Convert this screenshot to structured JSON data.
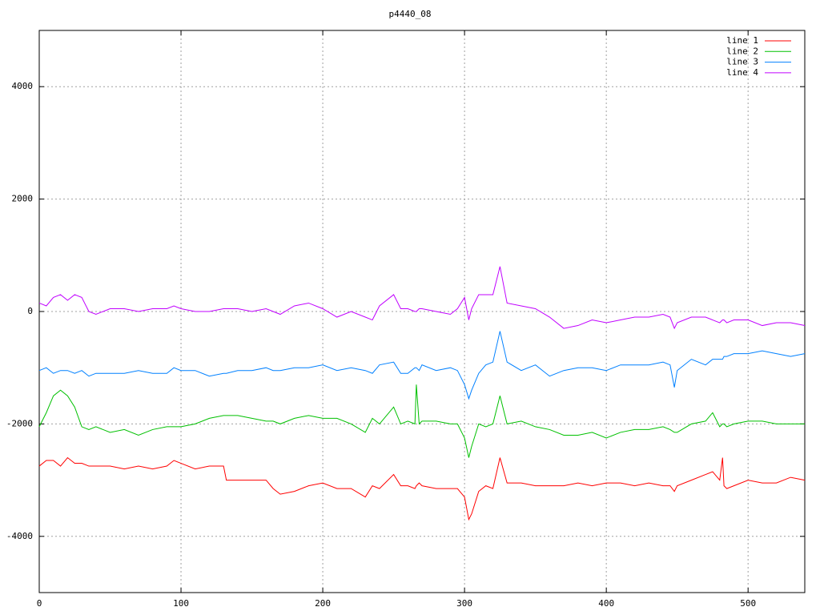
{
  "chart_data": {
    "type": "line",
    "title": "p4440_08",
    "x": [
      0,
      5,
      10,
      15,
      20,
      25,
      30,
      35,
      40,
      50,
      60,
      70,
      80,
      90,
      95,
      100,
      110,
      120,
      130,
      132,
      140,
      150,
      160,
      165,
      170,
      180,
      190,
      200,
      210,
      220,
      230,
      235,
      240,
      250,
      255,
      260,
      265,
      266,
      268,
      270,
      280,
      290,
      295,
      300,
      303,
      305,
      310,
      315,
      320,
      325,
      330,
      340,
      350,
      360,
      370,
      380,
      390,
      400,
      410,
      420,
      430,
      440,
      445,
      448,
      450,
      460,
      470,
      475,
      480,
      482,
      483,
      485,
      490,
      500,
      510,
      520,
      530,
      540
    ],
    "series": [
      {
        "name": "line 1",
        "color": "#ff0000",
        "values": [
          -2750,
          -2650,
          -2650,
          -2750,
          -2600,
          -2700,
          -2700,
          -2750,
          -2750,
          -2750,
          -2800,
          -2750,
          -2800,
          -2750,
          -2650,
          -2700,
          -2800,
          -2750,
          -2750,
          -3000,
          -3000,
          -3000,
          -3000,
          -3150,
          -3250,
          -3200,
          -3100,
          -3050,
          -3150,
          -3150,
          -3300,
          -3100,
          -3150,
          -2900,
          -3100,
          -3100,
          -3150,
          -3100,
          -3050,
          -3100,
          -3150,
          -3150,
          -3150,
          -3300,
          -3700,
          -3600,
          -3200,
          -3100,
          -3150,
          -2600,
          -3050,
          -3050,
          -3100,
          -3100,
          -3100,
          -3050,
          -3100,
          -3050,
          -3050,
          -3100,
          -3050,
          -3100,
          -3100,
          -3200,
          -3100,
          -3000,
          -2900,
          -2850,
          -3000,
          -2600,
          -3100,
          -3150,
          -3100,
          -3000,
          -3050,
          -3050,
          -2950,
          -3000
        ]
      },
      {
        "name": "line 2",
        "color": "#00c000",
        "values": [
          -2050,
          -1800,
          -1500,
          -1400,
          -1500,
          -1700,
          -2050,
          -2100,
          -2050,
          -2150,
          -2100,
          -2200,
          -2100,
          -2050,
          -2050,
          -2050,
          -2000,
          -1900,
          -1850,
          -1850,
          -1850,
          -1900,
          -1950,
          -1950,
          -2000,
          -1900,
          -1850,
          -1900,
          -1900,
          -2000,
          -2150,
          -1900,
          -2000,
          -1700,
          -2000,
          -1950,
          -2000,
          -1300,
          -2000,
          -1950,
          -1950,
          -2000,
          -2000,
          -2250,
          -2600,
          -2400,
          -2000,
          -2050,
          -2000,
          -1500,
          -2000,
          -1950,
          -2050,
          -2100,
          -2200,
          -2200,
          -2150,
          -2250,
          -2150,
          -2100,
          -2100,
          -2050,
          -2100,
          -2150,
          -2150,
          -2000,
          -1950,
          -1800,
          -2050,
          -2000,
          -2000,
          -2050,
          -2000,
          -1950,
          -1950,
          -2000,
          -2000,
          -2000
        ]
      },
      {
        "name": "line 3",
        "color": "#0080ff",
        "values": [
          -1050,
          -1000,
          -1100,
          -1050,
          -1050,
          -1100,
          -1050,
          -1150,
          -1100,
          -1100,
          -1100,
          -1050,
          -1100,
          -1100,
          -1000,
          -1050,
          -1050,
          -1150,
          -1100,
          -1100,
          -1050,
          -1050,
          -1000,
          -1050,
          -1050,
          -1000,
          -1000,
          -950,
          -1050,
          -1000,
          -1050,
          -1100,
          -950,
          -900,
          -1100,
          -1100,
          -1000,
          -1000,
          -1050,
          -950,
          -1050,
          -1000,
          -1050,
          -1300,
          -1550,
          -1400,
          -1100,
          -950,
          -900,
          -350,
          -900,
          -1050,
          -950,
          -1150,
          -1050,
          -1000,
          -1000,
          -1050,
          -950,
          -950,
          -950,
          -900,
          -950,
          -1350,
          -1050,
          -850,
          -950,
          -850,
          -850,
          -850,
          -800,
          -800,
          -750,
          -750,
          -700,
          -750,
          -800,
          -750
        ]
      },
      {
        "name": "line 4",
        "color": "#c000ff",
        "values": [
          150,
          100,
          250,
          300,
          200,
          300,
          250,
          0,
          -50,
          50,
          50,
          0,
          50,
          50,
          100,
          50,
          0,
          0,
          50,
          50,
          50,
          0,
          50,
          0,
          -50,
          100,
          150,
          50,
          -100,
          0,
          -100,
          -150,
          100,
          300,
          50,
          50,
          0,
          0,
          50,
          50,
          0,
          -50,
          50,
          250,
          -150,
          50,
          300,
          300,
          300,
          800,
          150,
          100,
          50,
          -100,
          -300,
          -250,
          -150,
          -200,
          -150,
          -100,
          -100,
          -50,
          -100,
          -300,
          -200,
          -100,
          -100,
          -150,
          -200,
          -150,
          -150,
          -200,
          -150,
          -150,
          -250,
          -200,
          -200,
          -250
        ]
      }
    ],
    "xlim": [
      0,
      540
    ],
    "ylim": [
      -5000,
      5000
    ],
    "xticks": [
      0,
      100,
      200,
      300,
      400,
      500
    ],
    "yticks": [
      -4000,
      -2000,
      0,
      2000,
      4000
    ],
    "grid": true,
    "legend": "top-right"
  }
}
